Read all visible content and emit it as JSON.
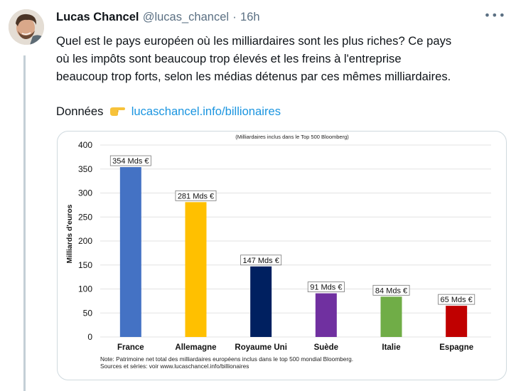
{
  "tweet": {
    "author_name": "Lucas Chancel",
    "author_handle": "@lucas_chancel",
    "separator": "·",
    "timestamp": "16h",
    "more_icon": "more-horizontal-icon",
    "text_lines": [
      "Quel est le pays européen où les milliardaires sont les plus riches? Ce pays",
      "où les impôts sont beaucoup trop élevés et les freins à l'entreprise",
      "beaucoup trop forts, selon les médias détenus par ces mêmes milliardaires."
    ],
    "donnees_label": "Données",
    "pointing_emoji": "backhand-index-pointing-right-icon",
    "link_text": "lucaschancel.info/billionaires"
  },
  "chart_data": {
    "type": "bar",
    "title": "",
    "subtitle": "(Milliardaires inclus dans le Top 500 Bloomberg)",
    "xlabel": "",
    "ylabel": "Milliards d'euros",
    "ylim": [
      0,
      400
    ],
    "yticks": [
      0,
      50,
      100,
      150,
      200,
      250,
      300,
      350,
      400
    ],
    "grid": true,
    "categories": [
      "France",
      "Allemagne",
      "Royaume Uni",
      "Suède",
      "Italie",
      "Espagne"
    ],
    "values": [
      354,
      281,
      147,
      91,
      84,
      65
    ],
    "data_labels": [
      "354 Mds €",
      "281 Mds €",
      "147 Mds €",
      "91 Mds €",
      "84 Mds €",
      "65 Mds €"
    ],
    "colors": [
      "#4472c4",
      "#ffc000",
      "#002060",
      "#7030a0",
      "#70ad47",
      "#c00000"
    ],
    "notes": [
      "Note: Patrimoine net total des milliardaires européens inclus dans le top 500 mondial Bloomberg.",
      "Sources et séries: voir www.lucaschancel.info/billionaires"
    ]
  }
}
